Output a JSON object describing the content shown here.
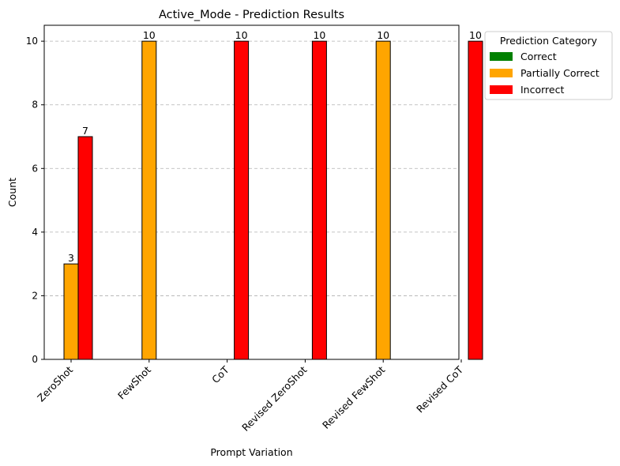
{
  "chart_data": {
    "type": "bar",
    "title": "Active_Mode - Prediction Results",
    "xlabel": "Prompt Variation",
    "ylabel": "Count",
    "categories": [
      "ZeroShot",
      "FewShot",
      "CoT",
      "Revised ZeroShot",
      "Revised FewShot",
      "Revised CoT"
    ],
    "series": [
      {
        "name": "Correct",
        "color": "#008000",
        "values": [
          0,
          0,
          0,
          0,
          0,
          0
        ]
      },
      {
        "name": "Partially Correct",
        "color": "#FFA500",
        "values": [
          3,
          10,
          0,
          0,
          10,
          0
        ]
      },
      {
        "name": "Incorrect",
        "color": "#FF0000",
        "values": [
          7,
          0,
          10,
          10,
          0,
          10
        ]
      }
    ],
    "ylim": [
      0,
      10.5
    ],
    "yticks": [
      0,
      2,
      4,
      6,
      8,
      10
    ],
    "grid": "y-dashed",
    "legend": {
      "title": "Prediction Category",
      "placement": "outside-top-right"
    }
  }
}
